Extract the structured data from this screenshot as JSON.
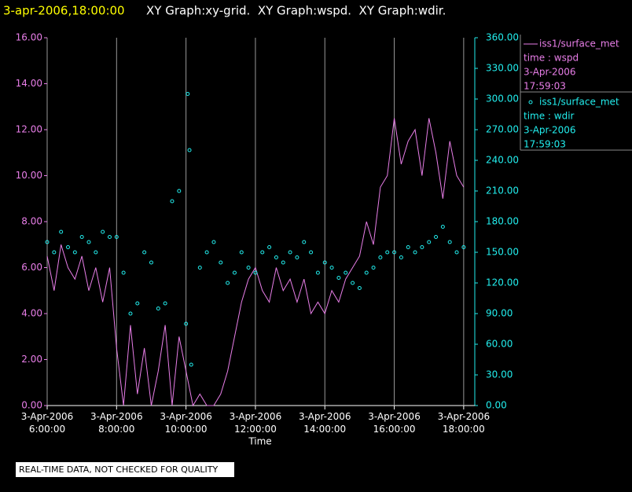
{
  "chart_data": {
    "type": "line",
    "title_time": "3-apr-2006,18:00:00",
    "title": "XY Graph:xy-grid.  XY Graph:wspd.  XY Graph:wdir.",
    "x_label": "Time",
    "note": "REAL-TIME DATA, NOT CHECKED FOR QUALITY",
    "xlim": [
      6,
      18.32
    ],
    "xticks": [
      {
        "value": 6,
        "label": "3-Apr-2006 6:00:00"
      },
      {
        "value": 8,
        "label": "3-Apr-2006 8:00:00"
      },
      {
        "value": 10,
        "label": "3-Apr-2006 10:00:00"
      },
      {
        "value": 12,
        "label": "3-Apr-2006 12:00:00"
      },
      {
        "value": 14,
        "label": "3-Apr-2006 14:00:00"
      },
      {
        "value": 16,
        "label": "3-Apr-2006 16:00:00"
      },
      {
        "value": 18,
        "label": "3-Apr-2006 18:00:00"
      }
    ],
    "ylim": [
      0,
      16
    ],
    "yticks": [
      {
        "value": 0,
        "label": "0.00"
      },
      {
        "value": 2,
        "label": "2.00"
      },
      {
        "value": 4,
        "label": "4.00"
      },
      {
        "value": 6,
        "label": "6.00"
      },
      {
        "value": 8,
        "label": "8.00"
      },
      {
        "value": 10,
        "label": "10.00"
      },
      {
        "value": 12,
        "label": "12.00"
      },
      {
        "value": 14,
        "label": "14.00"
      },
      {
        "value": 16,
        "label": "16.00"
      }
    ],
    "y2lim": [
      0,
      360
    ],
    "y2ticks": [
      {
        "value": 0,
        "label": "0.00"
      },
      {
        "value": 30,
        "label": "30.00"
      },
      {
        "value": 60,
        "label": "60.00"
      },
      {
        "value": 90,
        "label": "90.00"
      },
      {
        "value": 120,
        "label": "120.00"
      },
      {
        "value": 150,
        "label": "150.00"
      },
      {
        "value": 180,
        "label": "180.00"
      },
      {
        "value": 210,
        "label": "210.00"
      },
      {
        "value": 240,
        "label": "240.00"
      },
      {
        "value": 270,
        "label": "270.00"
      },
      {
        "value": 300,
        "label": "300.00"
      },
      {
        "value": 330,
        "label": "330.00"
      },
      {
        "value": 360,
        "label": "360.00"
      }
    ],
    "grid": true,
    "series": [
      {
        "name": "iss1/surface_met",
        "legend_lines": [
          "time : wspd",
          "3-Apr-2006",
          "17:59:03"
        ],
        "color": "#e87ee8",
        "style": "line",
        "x": [
          6.0,
          6.2,
          6.4,
          6.6,
          6.8,
          7.0,
          7.2,
          7.4,
          7.6,
          7.8,
          8.0,
          8.2,
          8.4,
          8.6,
          8.8,
          9.0,
          9.2,
          9.4,
          9.6,
          9.8,
          10.0,
          10.2,
          10.4,
          10.6,
          10.8,
          11.0,
          11.2,
          11.4,
          11.6,
          11.8,
          12.0,
          12.2,
          12.4,
          12.6,
          12.8,
          13.0,
          13.2,
          13.4,
          13.6,
          13.8,
          14.0,
          14.2,
          14.4,
          14.6,
          14.8,
          15.0,
          15.2,
          15.4,
          15.6,
          15.8,
          16.0,
          16.2,
          16.4,
          16.6,
          16.8,
          17.0,
          17.2,
          17.4,
          17.6,
          17.8,
          18.0
        ],
        "values": [
          6.5,
          5.0,
          7.0,
          6.0,
          5.5,
          6.5,
          5.0,
          6.0,
          4.5,
          6.0,
          2.5,
          0,
          3.5,
          0.5,
          2.5,
          0,
          1.5,
          3.5,
          0,
          3.0,
          1.5,
          0,
          0.5,
          0,
          0,
          0.5,
          1.5,
          3.0,
          4.5,
          5.5,
          6.0,
          5.0,
          4.5,
          6.0,
          5.0,
          5.5,
          4.5,
          5.5,
          4.0,
          4.5,
          4.0,
          5.0,
          4.5,
          5.5,
          6.0,
          6.5,
          8.0,
          7.0,
          9.5,
          10.0,
          12.5,
          10.5,
          11.5,
          12.0,
          10.0,
          12.5,
          11.0,
          9.0,
          11.5,
          10.0,
          9.5
        ]
      },
      {
        "name": "iss1/surface_met",
        "legend_lines": [
          "time : wdir",
          "3-Apr-2006",
          "17:59:03"
        ],
        "color": "#22eeee",
        "style": "markers",
        "axis": "y2",
        "x": [
          6.0,
          6.2,
          6.4,
          6.6,
          6.8,
          7.0,
          7.2,
          7.4,
          7.6,
          7.8,
          8.0,
          8.2,
          8.4,
          8.6,
          8.8,
          9.0,
          9.2,
          9.4,
          9.6,
          9.8,
          10.0,
          10.05,
          10.1,
          10.15,
          10.4,
          10.6,
          10.8,
          11.0,
          11.2,
          11.4,
          11.6,
          11.8,
          12.0,
          12.2,
          12.4,
          12.6,
          12.8,
          13.0,
          13.2,
          13.4,
          13.6,
          13.8,
          14.0,
          14.2,
          14.4,
          14.6,
          14.8,
          15.0,
          15.2,
          15.4,
          15.6,
          15.8,
          16.0,
          16.2,
          16.4,
          16.6,
          16.8,
          17.0,
          17.2,
          17.4,
          17.6,
          17.8,
          18.0
        ],
        "values": [
          160,
          150,
          170,
          155,
          150,
          165,
          160,
          150,
          170,
          165,
          165,
          130,
          90,
          100,
          150,
          140,
          95,
          100,
          200,
          210,
          80,
          305,
          250,
          40,
          135,
          150,
          160,
          140,
          120,
          130,
          150,
          135,
          130,
          150,
          155,
          145,
          140,
          150,
          145,
          160,
          150,
          130,
          140,
          135,
          125,
          130,
          120,
          115,
          130,
          135,
          145,
          150,
          150,
          145,
          155,
          150,
          155,
          160,
          165,
          175,
          160,
          150,
          155
        ]
      }
    ]
  }
}
